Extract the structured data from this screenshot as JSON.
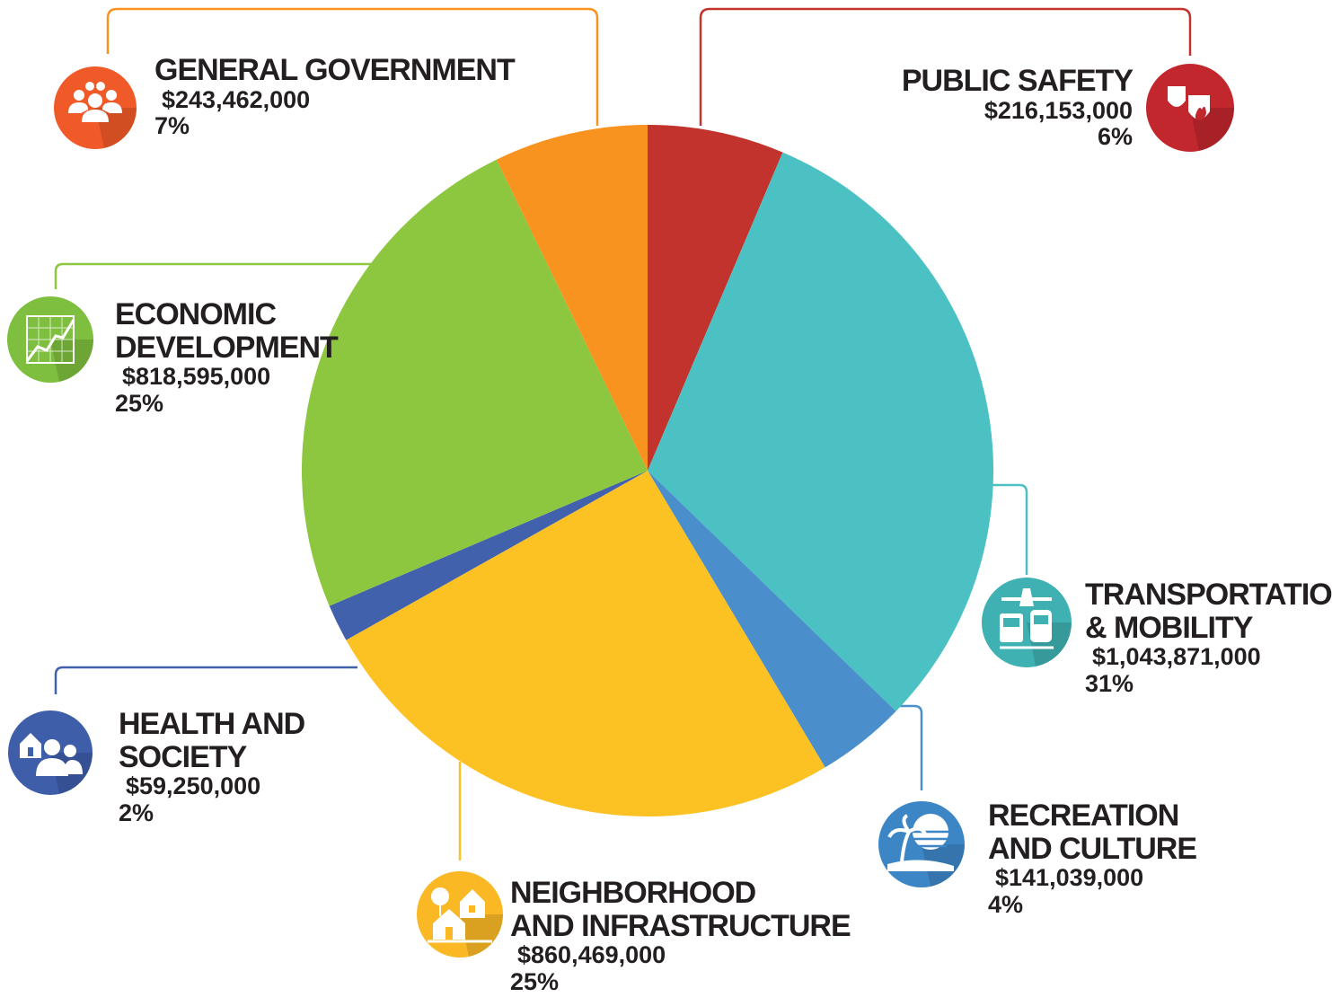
{
  "chart_data": {
    "type": "pie",
    "title": "",
    "slices": [
      {
        "label": "PUBLIC SAFETY",
        "amount": "$216,153,000",
        "percent": "6%",
        "value": 216153000,
        "color": "#c1332c",
        "icon": "police-fire-badge-icon"
      },
      {
        "label": "TRANSPORTATION\n& MOBILITY",
        "amount": "$1,043,871,000",
        "percent": "31%",
        "value": 1043871000,
        "color": "#4bc1c4",
        "icon": "plane-bus-train-icon"
      },
      {
        "label": "RECREATION\nAND CULTURE",
        "amount": "$141,039,000",
        "percent": "4%",
        "value": 141039000,
        "color": "#4a8ecb",
        "icon": "palm-tree-beach-icon"
      },
      {
        "label": "NEIGHBORHOOD\nAND INFRASTRUCTURE",
        "amount": "$860,469,000",
        "percent": "25%",
        "value": 860469000,
        "color": "#fcc224",
        "icon": "houses-icon"
      },
      {
        "label": "HEALTH AND\nSOCIETY",
        "amount": "$59,250,000",
        "percent": "2%",
        "value": 59250000,
        "color": "#4161ad",
        "icon": "house-family-icon"
      },
      {
        "label": "ECONOMIC\nDEVELOPMENT",
        "amount": "$818,595,000",
        "percent": "25%",
        "value": 818595000,
        "color": "#8dc63f",
        "icon": "growth-graph-icon"
      },
      {
        "label": "GENERAL GOVERNMENT",
        "amount": "$243,462,000",
        "percent": "7%",
        "value": 243462000,
        "color": "#f7931e",
        "icon": "people-group-icon"
      }
    ]
  },
  "icon_colors": {
    "public_safety": "#c1272d",
    "transportation": "#3fb1b3",
    "recreation": "#3d86c6",
    "neighborhood": "#fbb825",
    "health": "#3f5ea9",
    "economic": "#7fbf3f",
    "government": "#f05a28"
  }
}
